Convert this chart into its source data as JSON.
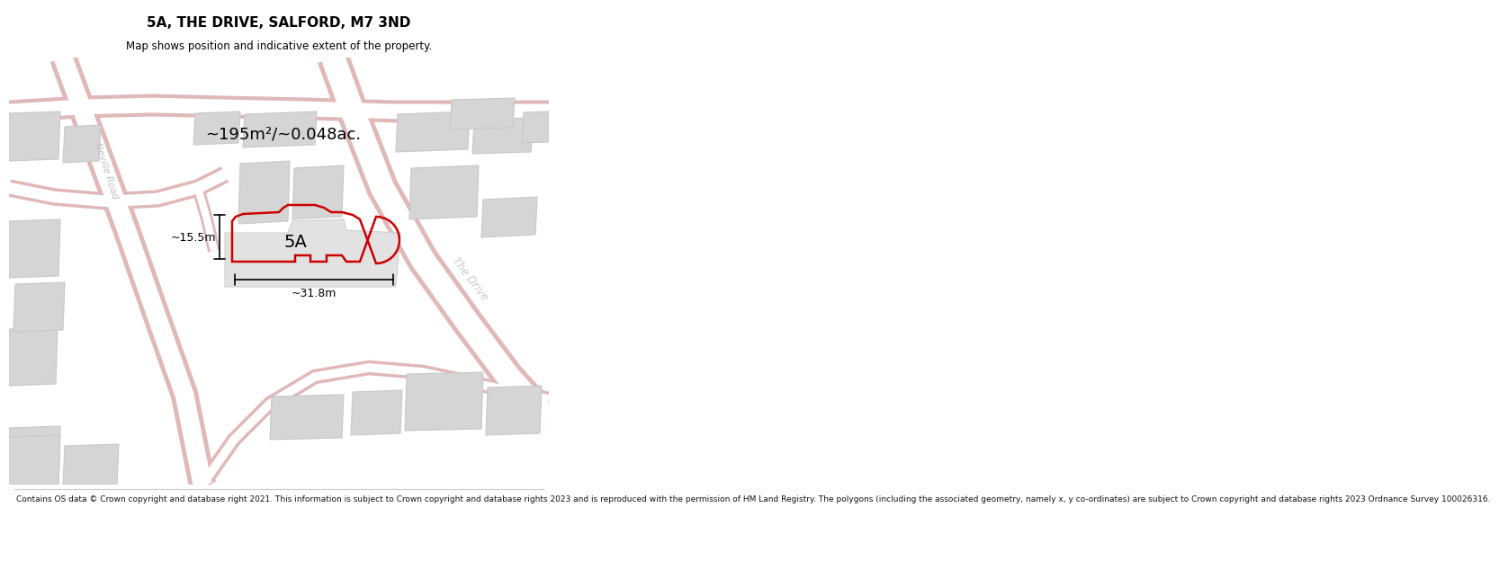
{
  "title": "5A, THE DRIVE, SALFORD, M7 3ND",
  "subtitle": "Map shows position and indicative extent of the property.",
  "area_label": "~195m²/~0.048ac.",
  "plot_label": "5A",
  "width_label": "~31.8m",
  "height_label": "~15.5m",
  "footer": "Contains OS data © Crown copyright and database right 2021. This information is subject to Crown copyright and database rights 2023 and is reproduced with the permission of HM Land Registry. The polygons (including the associated geometry, namely x, y co-ordinates) are subject to Crown copyright and database rights 2023 Ordnance Survey 100026316.",
  "bg_color": "#f2f2f2",
  "road_fill": "#f0d8d8",
  "road_edge": "#e8b0b0",
  "building_fill": "#d8d8d8",
  "building_edge": "#cccccc",
  "plot_color": "#cc0000",
  "map_title_size": 11,
  "map_subtitle_size": 8.5,
  "footer_size": 6.5
}
